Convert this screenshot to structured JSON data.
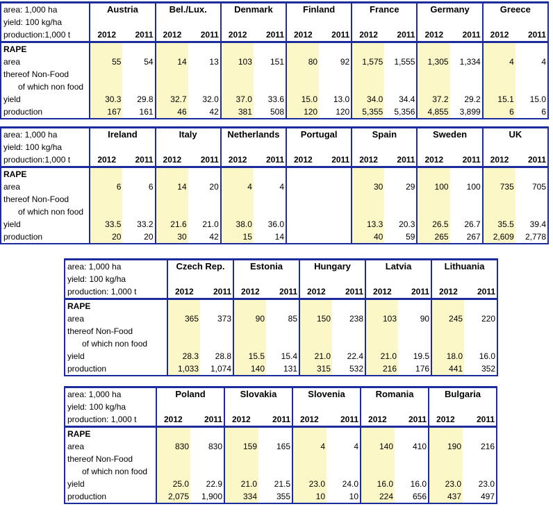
{
  "header_labels": {
    "area": "area: 1,000 ha",
    "yield": "yield: 100 kg/ha",
    "production_a": "production:1,000 t",
    "production_b": "production: 1,000 t"
  },
  "row_labels": {
    "crop": "RAPE",
    "area": "area",
    "nonfood": "thereof Non-Food",
    "ofwhich": "of which non food",
    "yield": "yield",
    "production": "production"
  },
  "years": {
    "y1": "2012",
    "y2": "2011"
  },
  "tables": [
    {
      "countries": [
        {
          "name": "Austria",
          "area": [
            "55",
            "54"
          ],
          "yield": [
            "30.3",
            "29.8"
          ],
          "production": [
            "167",
            "161"
          ]
        },
        {
          "name": "Bel./Lux.",
          "area": [
            "14",
            "13"
          ],
          "yield": [
            "32.7",
            "32.0"
          ],
          "production": [
            "46",
            "42"
          ]
        },
        {
          "name": "Denmark",
          "area": [
            "103",
            "151"
          ],
          "yield": [
            "37.0",
            "33.6"
          ],
          "production": [
            "381",
            "508"
          ]
        },
        {
          "name": "Finland",
          "area": [
            "80",
            "92"
          ],
          "yield": [
            "15.0",
            "13.0"
          ],
          "production": [
            "120",
            "120"
          ]
        },
        {
          "name": "France",
          "area": [
            "1,575",
            "1,555"
          ],
          "yield": [
            "34.0",
            "34.4"
          ],
          "production": [
            "5,355",
            "5,356"
          ]
        },
        {
          "name": "Germany",
          "area": [
            "1,305",
            "1,334"
          ],
          "yield": [
            "37.2",
            "29.2"
          ],
          "production": [
            "4,855",
            "3,899"
          ]
        },
        {
          "name": "Greece",
          "area": [
            "4",
            "4"
          ],
          "yield": [
            "15.1",
            "15.0"
          ],
          "production": [
            "6",
            "6"
          ]
        }
      ]
    },
    {
      "countries": [
        {
          "name": "Ireland",
          "area": [
            "6",
            "6"
          ],
          "yield": [
            "33.5",
            "33.2"
          ],
          "production": [
            "20",
            "20"
          ]
        },
        {
          "name": "Italy",
          "area": [
            "14",
            "20"
          ],
          "yield": [
            "21.6",
            "21.0"
          ],
          "production": [
            "30",
            "42"
          ]
        },
        {
          "name": "Netherlands",
          "area": [
            "4",
            "4"
          ],
          "yield": [
            "38.0",
            "36.0"
          ],
          "production": [
            "15",
            "14"
          ]
        },
        {
          "name": "Portugal",
          "area": [
            "",
            ""
          ],
          "yield": [
            "",
            ""
          ],
          "production": [
            "",
            ""
          ]
        },
        {
          "name": "Spain",
          "area": [
            "30",
            "29"
          ],
          "yield": [
            "13.3",
            "20.3"
          ],
          "production": [
            "40",
            "59"
          ]
        },
        {
          "name": "Sweden",
          "area": [
            "100",
            "100"
          ],
          "yield": [
            "26.5",
            "26.7"
          ],
          "production": [
            "265",
            "267"
          ]
        },
        {
          "name": "UK",
          "area": [
            "735",
            "705"
          ],
          "yield": [
            "35.5",
            "39.4"
          ],
          "production": [
            "2,609",
            "2,778"
          ]
        }
      ]
    },
    {
      "countries": [
        {
          "name": "Czech Rep.",
          "area": [
            "365",
            "373"
          ],
          "yield": [
            "28.3",
            "28.8"
          ],
          "production": [
            "1,033",
            "1,074"
          ]
        },
        {
          "name": "Estonia",
          "area": [
            "90",
            "85"
          ],
          "yield": [
            "15.5",
            "15.4"
          ],
          "production": [
            "140",
            "131"
          ]
        },
        {
          "name": "Hungary",
          "area": [
            "150",
            "238"
          ],
          "yield": [
            "21.0",
            "22.4"
          ],
          "production": [
            "315",
            "532"
          ]
        },
        {
          "name": "Latvia",
          "area": [
            "103",
            "90"
          ],
          "yield": [
            "21.0",
            "19.5"
          ],
          "production": [
            "216",
            "176"
          ]
        },
        {
          "name": "Lithuania",
          "area": [
            "245",
            "220"
          ],
          "yield": [
            "18.0",
            "16.0"
          ],
          "production": [
            "441",
            "352"
          ]
        }
      ]
    },
    {
      "countries": [
        {
          "name": "Poland",
          "area": [
            "830",
            "830"
          ],
          "yield": [
            "25.0",
            "22.9"
          ],
          "production": [
            "2,075",
            "1,900"
          ]
        },
        {
          "name": "Slovakia",
          "area": [
            "159",
            "165"
          ],
          "yield": [
            "21.0",
            "21.5"
          ],
          "production": [
            "334",
            "355"
          ]
        },
        {
          "name": "Slovenia",
          "area": [
            "4",
            "4"
          ],
          "yield": [
            "23.0",
            "24.0"
          ],
          "production": [
            "10",
            "10"
          ]
        },
        {
          "name": "Romania",
          "area": [
            "140",
            "410"
          ],
          "yield": [
            "16.0",
            "16.0"
          ],
          "production": [
            "224",
            "656"
          ]
        },
        {
          "name": "Bulgaria",
          "area": [
            "190",
            "216"
          ],
          "yield": [
            "23.0",
            "23.0"
          ],
          "production": [
            "437",
            "497"
          ]
        }
      ]
    }
  ]
}
